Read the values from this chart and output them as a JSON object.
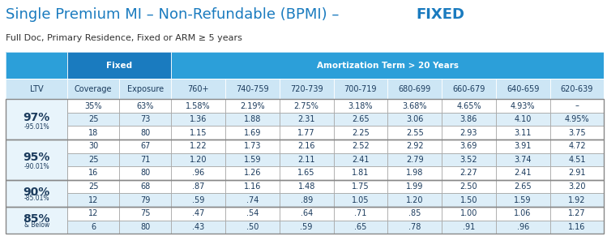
{
  "title_part1": "Single Premium MI – Non-Refundable (BPMI) – ",
  "title_part2": "FIXED",
  "subtitle": "Full Doc, Primary Residence, Fixed or ARM ≥ 5 years",
  "header1_cols": [
    "Fixed",
    "",
    "Amortization Term > 20 Years"
  ],
  "header2_cols": [
    "LTV",
    "Coverage",
    "Exposure",
    "760+",
    "740-759",
    "720-739",
    "700-719",
    "680-699",
    "660-679",
    "640-659",
    "620-639"
  ],
  "ltv_groups": [
    {
      "ltv": "97%",
      "sub": "-95.01%",
      "rows": [
        [
          "35%",
          "63%",
          "1.58%",
          "2.19%",
          "2.75%",
          "3.18%",
          "3.68%",
          "4.65%",
          "4.93%",
          "–"
        ],
        [
          "25",
          "73",
          "1.36",
          "1.88",
          "2.31",
          "2.65",
          "3.06",
          "3.86",
          "4.10",
          "4.95%"
        ],
        [
          "18",
          "80",
          "1.15",
          "1.69",
          "1.77",
          "2.25",
          "2.55",
          "2.93",
          "3.11",
          "3.75"
        ]
      ]
    },
    {
      "ltv": "95%",
      "sub": "-90.01%",
      "rows": [
        [
          "30",
          "67",
          "1.22",
          "1.73",
          "2.16",
          "2.52",
          "2.92",
          "3.69",
          "3.91",
          "4.72"
        ],
        [
          "25",
          "71",
          "1.20",
          "1.59",
          "2.11",
          "2.41",
          "2.79",
          "3.52",
          "3.74",
          "4.51"
        ],
        [
          "16",
          "80",
          ".96",
          "1.26",
          "1.65",
          "1.81",
          "1.98",
          "2.27",
          "2.41",
          "2.91"
        ]
      ]
    },
    {
      "ltv": "90%",
      "sub": "-85.01%",
      "rows": [
        [
          "25",
          "68",
          ".87",
          "1.16",
          "1.48",
          "1.75",
          "1.99",
          "2.50",
          "2.65",
          "3.20"
        ],
        [
          "12",
          "79",
          ".59",
          ".74",
          ".89",
          "1.05",
          "1.20",
          "1.50",
          "1.59",
          "1.92"
        ]
      ]
    },
    {
      "ltv": "85%",
      "sub": "& Below",
      "rows": [
        [
          "12",
          "75",
          ".47",
          ".54",
          ".64",
          ".71",
          ".85",
          "1.00",
          "1.06",
          "1.27"
        ],
        [
          "6",
          "80",
          ".43",
          ".50",
          ".59",
          ".65",
          ".78",
          ".91",
          ".96",
          "1.16"
        ]
      ]
    }
  ],
  "color_header_dark": "#1a7bbf",
  "color_header_medium": "#2c9fd9",
  "color_header_light": "#d6eaf8",
  "color_subheader": "#cde6f5",
  "color_ltv_bg": "#ffffff",
  "color_row_odd": "#ffffff",
  "color_row_even": "#eaf5fb",
  "color_border": "#aaaaaa",
  "color_title_blue": "#1a7bbf",
  "color_text_dark": "#2c3e50",
  "color_ltv_text": "#2c3e50",
  "title_fontsize": 13,
  "subtitle_fontsize": 8,
  "header_fontsize": 7.5,
  "cell_fontsize": 7
}
